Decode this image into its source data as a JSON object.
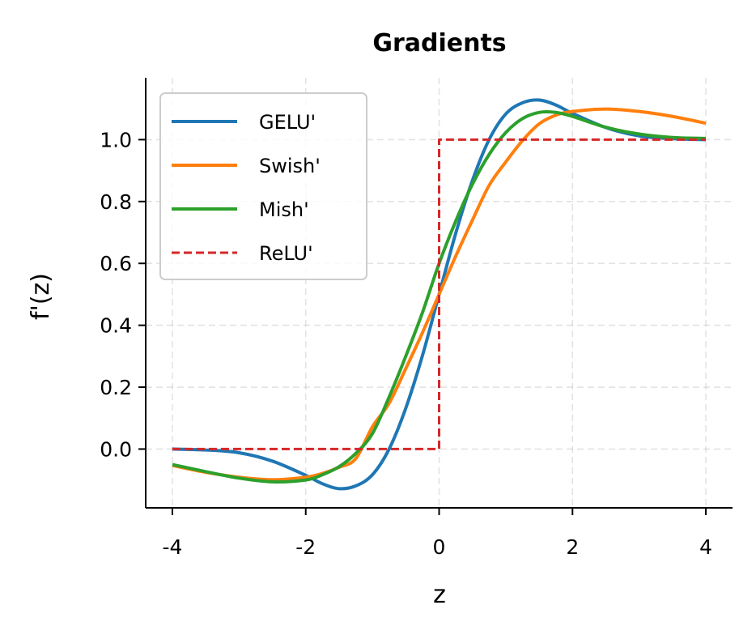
{
  "chart_data": {
    "type": "line",
    "title": "Gradients",
    "xlabel": "z",
    "ylabel": "f'(z)",
    "xlim": [
      -4.4,
      4.4
    ],
    "ylim": [
      -0.19,
      1.2
    ],
    "xticks": [
      -4,
      -2,
      0,
      2,
      4
    ],
    "xtick_labels": [
      "-4",
      "-2",
      "0",
      "2",
      "4"
    ],
    "yticks": [
      0.0,
      0.2,
      0.4,
      0.6,
      0.8,
      1.0
    ],
    "ytick_labels": [
      "0.0",
      "0.2",
      "0.4",
      "0.6",
      "0.8",
      "1.0"
    ],
    "grid": true,
    "legend_position": "upper-left",
    "x": [
      -4.0,
      -3.5,
      -3.0,
      -2.5,
      -2.0,
      -1.75,
      -1.5,
      -1.25,
      -1.0,
      -0.75,
      -0.5,
      -0.25,
      0.0,
      0.25,
      0.5,
      0.75,
      1.0,
      1.25,
      1.5,
      1.75,
      2.0,
      2.5,
      3.0,
      3.5,
      4.0
    ],
    "series": [
      {
        "name": "GELU'",
        "color": "#1f77b4",
        "style": "solid",
        "values": [
          0.0,
          -0.003,
          -0.012,
          -0.039,
          -0.085,
          -0.112,
          -0.128,
          -0.119,
          -0.083,
          -0.0,
          0.132,
          0.302,
          0.5,
          0.698,
          0.868,
          1.0,
          1.083,
          1.119,
          1.128,
          1.112,
          1.085,
          1.039,
          1.012,
          1.003,
          1.0
        ]
      },
      {
        "name": "Swish'",
        "color": "#ff7f0e",
        "style": "solid",
        "values": [
          -0.053,
          -0.075,
          -0.091,
          -0.099,
          -0.091,
          -0.079,
          -0.059,
          -0.031,
          0.072,
          0.148,
          0.26,
          0.376,
          0.5,
          0.624,
          0.74,
          0.852,
          0.928,
          0.997,
          1.051,
          1.079,
          1.091,
          1.099,
          1.091,
          1.075,
          1.053
        ]
      },
      {
        "name": "Mish'",
        "color": "#2ca02c",
        "style": "solid",
        "values": [
          -0.05,
          -0.073,
          -0.094,
          -0.106,
          -0.1,
          -0.083,
          -0.057,
          -0.014,
          0.05,
          0.168,
          0.3,
          0.441,
          0.6,
          0.737,
          0.856,
          0.952,
          1.023,
          1.068,
          1.088,
          1.088,
          1.075,
          1.04,
          1.018,
          1.007,
          1.004
        ]
      },
      {
        "name": "ReLU'",
        "color": "#d62728",
        "style": "dashed",
        "points": [
          [
            -4,
            0
          ],
          [
            0,
            0
          ],
          [
            0,
            1
          ],
          [
            4,
            1
          ]
        ]
      }
    ]
  }
}
